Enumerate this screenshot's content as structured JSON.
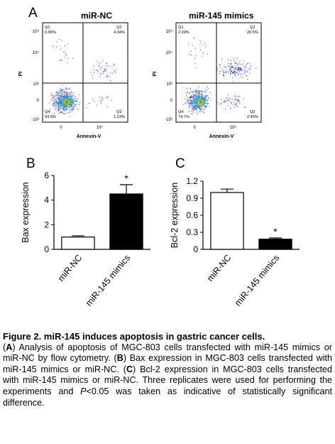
{
  "figure": {
    "panel_a": {
      "letter": "A",
      "left_title": "miR-NC",
      "right_title": "miR-145 mimics",
      "y_axis_label": "PI",
      "x_axis_label": "Annexin-V",
      "y_ticks": [
        "10⁵",
        "10⁴",
        "10³",
        "0",
        "-10³"
      ],
      "x_ticks": [
        "0",
        "10³"
      ],
      "left_quadrants": [
        {
          "name": "Q1",
          "value": "0.96%"
        },
        {
          "name": "Q2",
          "value": "4.34%"
        },
        {
          "name": "Q3",
          "value": "1.23%"
        },
        {
          "name": "Q4",
          "value": "93.5%"
        }
      ],
      "right_quadrants": [
        {
          "name": "Q1",
          "value": "2.29%"
        },
        {
          "name": "Q2",
          "value": "20.5%"
        },
        {
          "name": "Q3",
          "value": "2.45%"
        },
        {
          "name": "Q4",
          "value": "74.7%"
        }
      ]
    },
    "caption": {
      "title": "Figure 2. miR-145 induces apoptosis in gastric cancer cells.",
      "a_label": "A",
      "a_text": ") Analysis of apoptosis of MGC-803 cells transfected with miR-145 mimics or miR-NC by flow cytometry. (",
      "b_label": "B",
      "b_text": ") Bax expression in MGC-803 cells transfected with miR-145 mimics or miR-NC. (",
      "c_label": "C",
      "c_text": ") Bcl-2 expression in MGC-803 cells transfected with miR-145 mimics or miR-NC. Three replicates were used for performing the experiments and ",
      "p_symbol": "P",
      "p_text": "<0.05 was taken as indicative of statistically significant difference."
    }
  },
  "chart_data": [
    {
      "type": "bar",
      "panel": "B",
      "categories": [
        "miR-NC",
        "miR-145 mimics"
      ],
      "values": [
        1.0,
        4.5
      ],
      "errors": [
        0.1,
        0.75
      ],
      "fills": [
        "#ffffff",
        "#000000"
      ],
      "significance": [
        "",
        "*"
      ],
      "ylabel": "Bax expression",
      "ylim": [
        0,
        6
      ],
      "yticks": [
        0,
        2,
        4,
        6
      ],
      "ytick_labels": [
        "0",
        "2",
        "4",
        "6"
      ]
    },
    {
      "type": "bar",
      "panel": "C",
      "categories": [
        "miR-NC",
        "miR-145 mimics"
      ],
      "values": [
        1.0,
        0.18
      ],
      "errors": [
        0.06,
        0.02
      ],
      "fills": [
        "#ffffff",
        "#000000"
      ],
      "significance": [
        "",
        "*"
      ],
      "ylabel": "Bcl-2 expression",
      "ylim": [
        0,
        1.2
      ],
      "yticks": [
        0,
        0.3,
        0.6,
        0.9,
        1.2
      ],
      "ytick_labels": [
        "0",
        "0.3",
        "0.6",
        "0.9",
        "1.2"
      ]
    }
  ]
}
